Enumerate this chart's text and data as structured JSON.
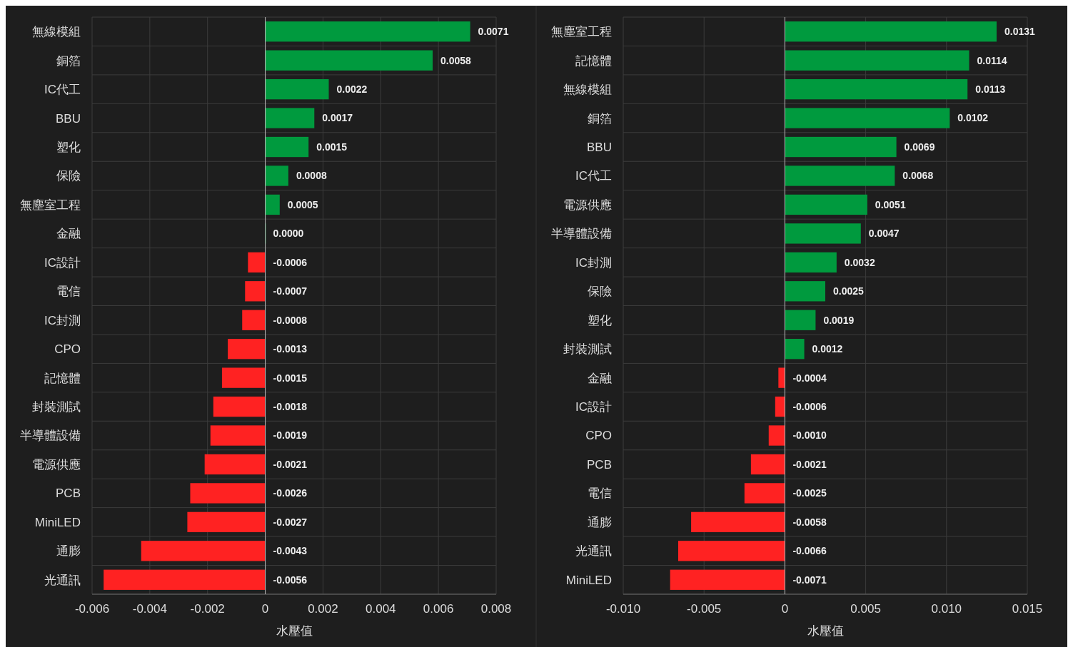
{
  "chart_data": [
    {
      "type": "bar",
      "orientation": "horizontal",
      "xlabel": "水壓值",
      "grid": true,
      "categories": [
        "無線模組",
        "銅箔",
        "IC代工",
        "BBU",
        "塑化",
        "保險",
        "無塵室工程",
        "金融",
        "IC設計",
        "電信",
        "IC封測",
        "CPO",
        "記憶體",
        "封裝測試",
        "半導體設備",
        "電源供應",
        "PCB",
        "MiniLED",
        "通膨",
        "光通訊"
      ],
      "values": [
        0.0071,
        0.0058,
        0.0022,
        0.0017,
        0.0015,
        0.0008,
        0.0005,
        0.0,
        -0.0006,
        -0.0007,
        -0.0008,
        -0.0013,
        -0.0015,
        -0.0018,
        -0.0019,
        -0.0021,
        -0.0026,
        -0.0027,
        -0.0043,
        -0.0056
      ],
      "value_labels": [
        "0.0071",
        "0.0058",
        "0.0022",
        "0.0017",
        "0.0015",
        "0.0008",
        "0.0005",
        "0.0000",
        "-0.0006",
        "-0.0007",
        "-0.0008",
        "-0.0013",
        "-0.0015",
        "-0.0018",
        "-0.0019",
        "-0.0021",
        "-0.0026",
        "-0.0027",
        "-0.0043",
        "-0.0056"
      ],
      "colors": [
        "#009a3e",
        "#009a3e",
        "#009a3e",
        "#009a3e",
        "#009a3e",
        "#009a3e",
        "#009a3e",
        "#009a3e",
        "#ff2222",
        "#ff2222",
        "#ff2222",
        "#ff2222",
        "#ff2222",
        "#ff2222",
        "#ff2222",
        "#ff2222",
        "#ff2222",
        "#ff2222",
        "#ff2222",
        "#ff2222"
      ],
      "xlim": [
        -0.006,
        0.008
      ],
      "xticks": [
        -0.006,
        -0.004,
        -0.002,
        0,
        0.002,
        0.004,
        0.006,
        0.008
      ]
    },
    {
      "type": "bar",
      "orientation": "horizontal",
      "xlabel": "水壓值",
      "grid": true,
      "categories": [
        "無塵室工程",
        "記憶體",
        "無線模組",
        "銅箔",
        "BBU",
        "IC代工",
        "電源供應",
        "半導體設備",
        "IC封測",
        "保險",
        "塑化",
        "封裝測試",
        "金融",
        "IC設計",
        "CPO",
        "PCB",
        "電信",
        "通膨",
        "光通訊",
        "MiniLED"
      ],
      "values": [
        0.0131,
        0.0114,
        0.0113,
        0.0102,
        0.0069,
        0.0068,
        0.0051,
        0.0047,
        0.0032,
        0.0025,
        0.0019,
        0.0012,
        -0.0004,
        -0.0006,
        -0.001,
        -0.0021,
        -0.0025,
        -0.0058,
        -0.0066,
        -0.0071
      ],
      "value_labels": [
        "0.0131",
        "0.0114",
        "0.0113",
        "0.0102",
        "0.0069",
        "0.0068",
        "0.0051",
        "0.0047",
        "0.0032",
        "0.0025",
        "0.0019",
        "0.0012",
        "-0.0004",
        "-0.0006",
        "-0.0010",
        "-0.0021",
        "-0.0025",
        "-0.0058",
        "-0.0066",
        "-0.0071"
      ],
      "colors": [
        "#009a3e",
        "#009a3e",
        "#009a3e",
        "#009a3e",
        "#009a3e",
        "#009a3e",
        "#009a3e",
        "#009a3e",
        "#009a3e",
        "#009a3e",
        "#009a3e",
        "#009a3e",
        "#ff2222",
        "#ff2222",
        "#ff2222",
        "#ff2222",
        "#ff2222",
        "#ff2222",
        "#ff2222",
        "#ff2222"
      ],
      "xlim": [
        -0.01,
        0.015
      ],
      "xticks": [
        {
          "value": -0.01,
          "label": "-0.010"
        },
        -0.005,
        0,
        0.005,
        {
          "value": 0.01,
          "label": "0.010"
        },
        0.015
      ]
    }
  ]
}
